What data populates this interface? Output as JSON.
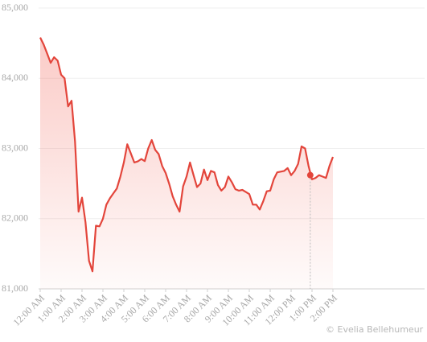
{
  "chart_data": {
    "type": "area",
    "x": [
      0,
      10,
      20,
      30,
      40,
      50,
      60,
      70,
      80,
      90,
      100,
      110,
      120,
      130,
      140,
      150,
      160,
      170,
      180,
      190,
      200,
      210,
      220,
      230,
      240,
      250,
      260,
      270,
      280,
      290,
      300,
      310,
      320,
      330,
      340,
      350,
      360,
      370,
      380,
      390,
      400,
      410,
      420,
      430,
      440,
      450,
      460,
      470,
      480,
      490,
      500,
      510,
      520,
      530,
      540,
      550,
      560,
      570,
      580,
      590,
      600,
      610,
      620,
      630,
      640,
      650,
      660,
      670,
      680,
      690,
      700,
      710,
      720,
      730,
      740,
      750,
      760,
      770,
      780,
      790,
      800,
      810,
      820,
      830,
      840
    ],
    "series": [
      {
        "color": "#e3453b",
        "values": [
          84580,
          84480,
          84350,
          84220,
          84300,
          84250,
          84050,
          84000,
          83600,
          83680,
          83100,
          82100,
          82300,
          81950,
          81400,
          81250,
          81900,
          81890,
          82000,
          82200,
          82290,
          82360,
          82430,
          82600,
          82800,
          83060,
          82930,
          82800,
          82815,
          82850,
          82820,
          83000,
          83120,
          82980,
          82920,
          82750,
          82650,
          82500,
          82320,
          82200,
          82100,
          82460,
          82600,
          82800,
          82620,
          82450,
          82500,
          82700,
          82550,
          82680,
          82660,
          82480,
          82400,
          82450,
          82600,
          82520,
          82420,
          82400,
          82410,
          82380,
          82350,
          82200,
          82200,
          82130,
          82250,
          82390,
          82400,
          82560,
          82660,
          82670,
          82680,
          82720,
          82620,
          82680,
          82780,
          83030,
          83000,
          82750,
          82560,
          82580,
          82620,
          82600,
          82580,
          82750,
          82880
        ]
      }
    ],
    "marker": {
      "x": 775,
      "value": 82620
    },
    "xlim": [
      0,
      1103
    ],
    "xticks": [
      {
        "value": 0,
        "label": "12:00 AM"
      },
      {
        "value": 60,
        "label": "1:00 AM"
      },
      {
        "value": 120,
        "label": "2:00 AM"
      },
      {
        "value": 180,
        "label": "3:00 AM"
      },
      {
        "value": 240,
        "label": "4:00 AM"
      },
      {
        "value": 300,
        "label": "5:00 AM"
      },
      {
        "value": 360,
        "label": "6:00 AM"
      },
      {
        "value": 420,
        "label": "7:00 AM"
      },
      {
        "value": 480,
        "label": "8:00 AM"
      },
      {
        "value": 540,
        "label": "9:00 AM"
      },
      {
        "value": 600,
        "label": "10:00 AM"
      },
      {
        "value": 660,
        "label": "11:00 AM"
      },
      {
        "value": 720,
        "label": "12:00 PM"
      },
      {
        "value": 780,
        "label": "1:00 PM"
      },
      {
        "value": 840,
        "label": "2:00 PM"
      }
    ],
    "ylim": [
      81000,
      85000
    ],
    "yticks": [
      {
        "value": 81000,
        "label": "81,000"
      },
      {
        "value": 82000,
        "label": "82,000"
      },
      {
        "value": 83000,
        "label": "83,000"
      },
      {
        "value": 84000,
        "label": "84,000"
      },
      {
        "value": 85000,
        "label": "85,000"
      }
    ],
    "grid": true,
    "watermark": "© Evelia Bellehumeur"
  }
}
